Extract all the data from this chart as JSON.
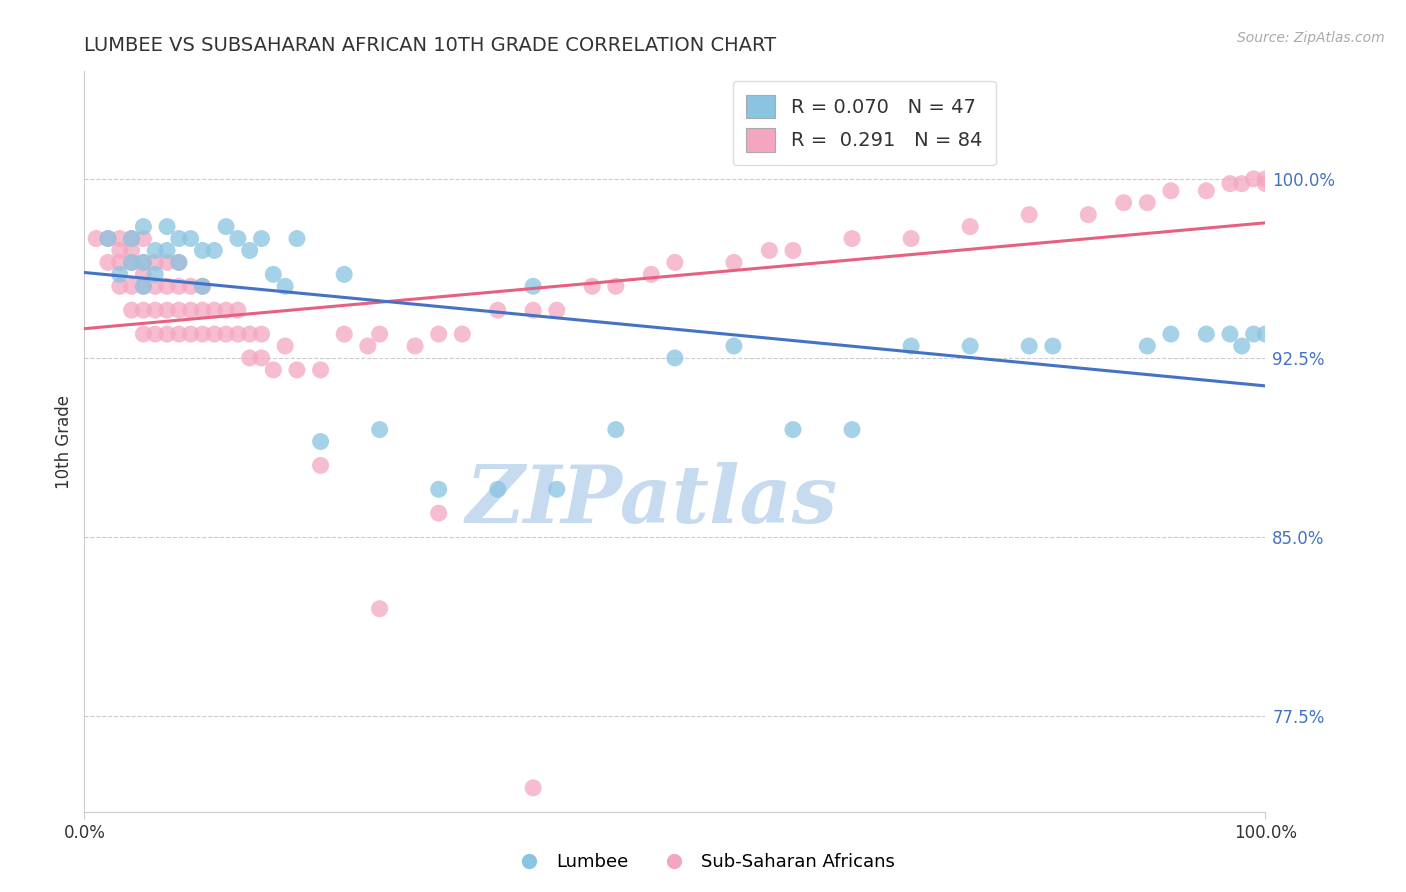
{
  "title": "LUMBEE VS SUBSAHARAN AFRICAN 10TH GRADE CORRELATION CHART",
  "source_text": "Source: ZipAtlas.com",
  "ylabel": "10th Grade",
  "ytick_labels": [
    "77.5%",
    "85.0%",
    "92.5%",
    "100.0%"
  ],
  "ytick_values": [
    0.775,
    0.85,
    0.925,
    1.0
  ],
  "legend_label1": "Lumbee",
  "legend_label2": "Sub-Saharan Africans",
  "R1": 0.07,
  "N1": 47,
  "R2": 0.291,
  "N2": 84,
  "color_blue": "#89c4e1",
  "color_pink": "#f4a6c0",
  "color_blue_line": "#4472c4",
  "color_pink_line": "#e86080",
  "watermark_text": "ZIPatlas",
  "watermark_color": "#c6dbef",
  "xlim": [
    0.0,
    1.0
  ],
  "ylim": [
    0.735,
    1.045
  ],
  "blue_x": [
    0.02,
    0.03,
    0.04,
    0.04,
    0.05,
    0.05,
    0.05,
    0.06,
    0.06,
    0.07,
    0.07,
    0.08,
    0.08,
    0.09,
    0.1,
    0.1,
    0.11,
    0.12,
    0.13,
    0.14,
    0.15,
    0.16,
    0.17,
    0.18,
    0.2,
    0.22,
    0.25,
    0.3,
    0.35,
    0.38,
    0.4,
    0.45,
    0.5,
    0.55,
    0.6,
    0.65,
    0.7,
    0.75,
    0.8,
    0.82,
    0.9,
    0.92,
    0.95,
    0.97,
    0.98,
    0.99,
    1.0
  ],
  "blue_y": [
    0.975,
    0.96,
    0.975,
    0.965,
    0.98,
    0.965,
    0.955,
    0.97,
    0.96,
    0.98,
    0.97,
    0.975,
    0.965,
    0.975,
    0.955,
    0.97,
    0.97,
    0.98,
    0.975,
    0.97,
    0.975,
    0.96,
    0.955,
    0.975,
    0.89,
    0.96,
    0.895,
    0.87,
    0.87,
    0.955,
    0.87,
    0.895,
    0.925,
    0.93,
    0.895,
    0.895,
    0.93,
    0.93,
    0.93,
    0.93,
    0.93,
    0.935,
    0.935,
    0.935,
    0.93,
    0.935,
    0.935
  ],
  "pink_x": [
    0.01,
    0.02,
    0.02,
    0.03,
    0.03,
    0.03,
    0.03,
    0.04,
    0.04,
    0.04,
    0.04,
    0.04,
    0.05,
    0.05,
    0.05,
    0.05,
    0.05,
    0.05,
    0.06,
    0.06,
    0.06,
    0.06,
    0.07,
    0.07,
    0.07,
    0.07,
    0.08,
    0.08,
    0.08,
    0.08,
    0.09,
    0.09,
    0.09,
    0.1,
    0.1,
    0.1,
    0.11,
    0.11,
    0.12,
    0.12,
    0.13,
    0.13,
    0.14,
    0.14,
    0.15,
    0.15,
    0.16,
    0.17,
    0.18,
    0.2,
    0.22,
    0.24,
    0.25,
    0.28,
    0.3,
    0.32,
    0.35,
    0.38,
    0.4,
    0.43,
    0.45,
    0.48,
    0.5,
    0.55,
    0.58,
    0.6,
    0.65,
    0.7,
    0.75,
    0.8,
    0.85,
    0.88,
    0.9,
    0.92,
    0.95,
    0.97,
    0.98,
    0.99,
    1.0,
    1.0,
    0.38,
    0.2,
    0.3,
    0.25
  ],
  "pink_y": [
    0.975,
    0.975,
    0.965,
    0.975,
    0.97,
    0.965,
    0.955,
    0.975,
    0.97,
    0.965,
    0.955,
    0.945,
    0.975,
    0.965,
    0.96,
    0.955,
    0.945,
    0.935,
    0.965,
    0.955,
    0.945,
    0.935,
    0.965,
    0.955,
    0.945,
    0.935,
    0.965,
    0.955,
    0.945,
    0.935,
    0.955,
    0.945,
    0.935,
    0.955,
    0.945,
    0.935,
    0.945,
    0.935,
    0.945,
    0.935,
    0.945,
    0.935,
    0.935,
    0.925,
    0.935,
    0.925,
    0.92,
    0.93,
    0.92,
    0.92,
    0.935,
    0.93,
    0.935,
    0.93,
    0.935,
    0.935,
    0.945,
    0.945,
    0.945,
    0.955,
    0.955,
    0.96,
    0.965,
    0.965,
    0.97,
    0.97,
    0.975,
    0.975,
    0.98,
    0.985,
    0.985,
    0.99,
    0.99,
    0.995,
    0.995,
    0.998,
    0.998,
    1.0,
    1.0,
    0.998,
    0.745,
    0.88,
    0.86,
    0.82
  ]
}
